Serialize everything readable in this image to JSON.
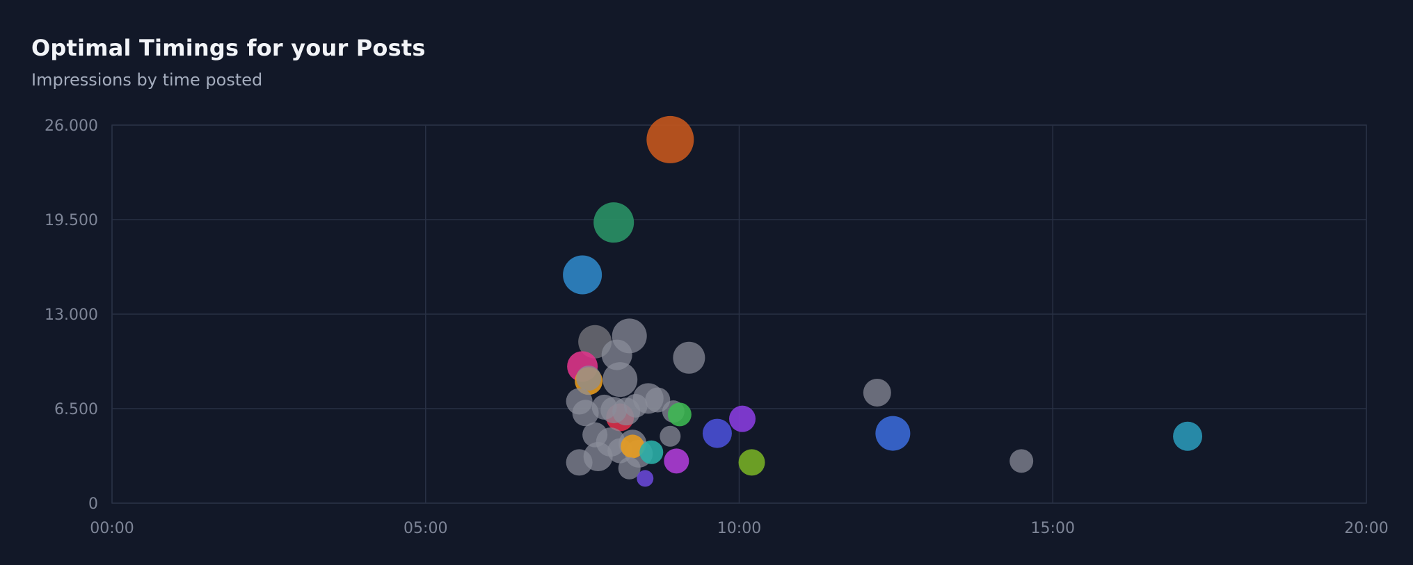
{
  "header": {
    "title": "Optimal Timings for your Posts",
    "subtitle": "Impressions by time posted"
  },
  "colors": {
    "background": "#121828",
    "grid": "#283044",
    "tick_text": "#7e8597",
    "neutral_bubble": "#8a8e9a"
  },
  "chart_data": {
    "type": "scatter",
    "title": "Optimal Timings for your Posts",
    "subtitle": "Impressions by time posted",
    "xlabel": "",
    "ylabel": "",
    "xlim": [
      0,
      20
    ],
    "ylim": [
      0,
      26000
    ],
    "x_ticks": [
      0,
      5,
      10,
      15,
      20
    ],
    "x_tick_labels": [
      "00:00",
      "05:00",
      "10:00",
      "15:00",
      "20:00"
    ],
    "y_ticks": [
      0,
      6500,
      13000,
      19500,
      26000
    ],
    "y_tick_labels": [
      "0",
      "6.500",
      "13.000",
      "19.500",
      "26.000"
    ],
    "grid": true,
    "legend": "none",
    "points": [
      {
        "x": 8.9,
        "y": 25000,
        "size": 34,
        "color": "#c8581c"
      },
      {
        "x": 8.0,
        "y": 19300,
        "size": 29,
        "color": "#2a9466"
      },
      {
        "x": 7.5,
        "y": 15700,
        "size": 28,
        "color": "#2f88c8"
      },
      {
        "x": 7.7,
        "y": 11100,
        "size": 24,
        "color": "#6a6a72"
      },
      {
        "x": 8.25,
        "y": 11500,
        "size": 25,
        "color": "#8a8e9a"
      },
      {
        "x": 9.2,
        "y": 10000,
        "size": 23,
        "color": "#8a8e9a"
      },
      {
        "x": 8.05,
        "y": 10200,
        "size": 22,
        "color": "#8a8e9a"
      },
      {
        "x": 8.1,
        "y": 8500,
        "size": 25,
        "color": "#8a8e9a"
      },
      {
        "x": 7.5,
        "y": 9400,
        "size": 22,
        "color": "#e0348a"
      },
      {
        "x": 7.6,
        "y": 8400,
        "size": 20,
        "color": "#e89c1c"
      },
      {
        "x": 7.6,
        "y": 8600,
        "size": 18,
        "color": "#8a8e9a"
      },
      {
        "x": 7.45,
        "y": 7000,
        "size": 19,
        "color": "#8a8e9a"
      },
      {
        "x": 7.55,
        "y": 6200,
        "size": 19,
        "color": "#8a8e9a"
      },
      {
        "x": 8.55,
        "y": 7200,
        "size": 22,
        "color": "#8a8e9a"
      },
      {
        "x": 8.7,
        "y": 7100,
        "size": 18,
        "color": "#8a8e9a"
      },
      {
        "x": 8.1,
        "y": 5900,
        "size": 20,
        "color": "#e0304a"
      },
      {
        "x": 8.2,
        "y": 6300,
        "size": 20,
        "color": "#8a8e9a"
      },
      {
        "x": 8.0,
        "y": 6400,
        "size": 19,
        "color": "#8a8e9a"
      },
      {
        "x": 7.85,
        "y": 6600,
        "size": 18,
        "color": "#8a8e9a"
      },
      {
        "x": 8.35,
        "y": 6700,
        "size": 17,
        "color": "#8a8e9a"
      },
      {
        "x": 8.95,
        "y": 6300,
        "size": 16,
        "color": "#8a8e9a"
      },
      {
        "x": 9.05,
        "y": 6100,
        "size": 17,
        "color": "#3dba52"
      },
      {
        "x": 10.05,
        "y": 5800,
        "size": 19,
        "color": "#8a3ce0"
      },
      {
        "x": 7.7,
        "y": 4700,
        "size": 18,
        "color": "#8a8e9a"
      },
      {
        "x": 7.95,
        "y": 4200,
        "size": 21,
        "color": "#8a8e9a"
      },
      {
        "x": 8.3,
        "y": 4100,
        "size": 20,
        "color": "#8a8e9a"
      },
      {
        "x": 7.75,
        "y": 3200,
        "size": 21,
        "color": "#8a8e9a"
      },
      {
        "x": 7.45,
        "y": 2800,
        "size": 19,
        "color": "#8a8e9a"
      },
      {
        "x": 8.1,
        "y": 3600,
        "size": 18,
        "color": "#8a8e9a"
      },
      {
        "x": 8.4,
        "y": 3400,
        "size": 20,
        "color": "#8a8e9a"
      },
      {
        "x": 8.3,
        "y": 3900,
        "size": 17,
        "color": "#e89c1c"
      },
      {
        "x": 8.6,
        "y": 3500,
        "size": 17,
        "color": "#2bb0a8"
      },
      {
        "x": 8.9,
        "y": 4600,
        "size": 15,
        "color": "#8a8e9a"
      },
      {
        "x": 9.65,
        "y": 4800,
        "size": 21,
        "color": "#4a50d8"
      },
      {
        "x": 9.0,
        "y": 2900,
        "size": 18,
        "color": "#b03cd8"
      },
      {
        "x": 8.25,
        "y": 2400,
        "size": 16,
        "color": "#8a8e9a"
      },
      {
        "x": 8.5,
        "y": 1700,
        "size": 12,
        "color": "#6a48d8"
      },
      {
        "x": 10.2,
        "y": 2800,
        "size": 19,
        "color": "#78b024"
      },
      {
        "x": 12.2,
        "y": 7600,
        "size": 20,
        "color": "#8a8e9a"
      },
      {
        "x": 12.45,
        "y": 4800,
        "size": 25,
        "color": "#3a6ad8"
      },
      {
        "x": 14.5,
        "y": 2900,
        "size": 17,
        "color": "#8a8e9a"
      },
      {
        "x": 17.15,
        "y": 4600,
        "size": 21,
        "color": "#2a98b8"
      }
    ]
  }
}
